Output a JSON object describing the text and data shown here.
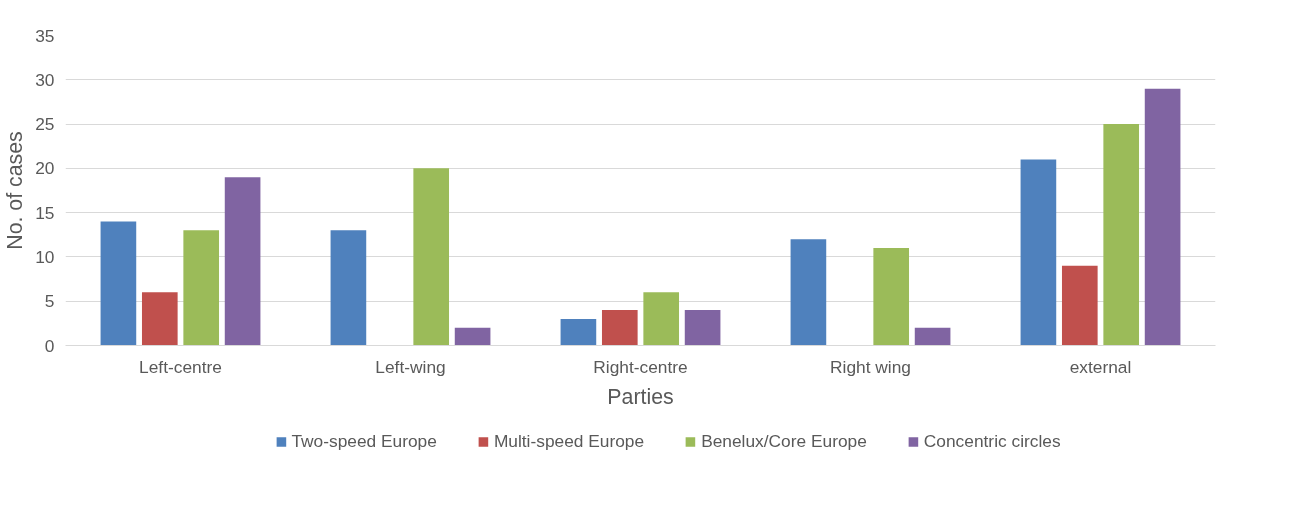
{
  "chart_data": {
    "type": "bar",
    "xlabel": "Parties",
    "ylabel": "No. of cases",
    "categories": [
      "Left-centre",
      "Left-wing",
      "Right-centre",
      "Right wing",
      "external"
    ],
    "series": [
      {
        "name": "Two-speed Europe",
        "color": "#4f81bd",
        "values": [
          14,
          13,
          3,
          12,
          21
        ]
      },
      {
        "name": "Multi-speed Europe",
        "color": "#c0504d",
        "values": [
          6,
          0,
          4,
          0,
          9
        ]
      },
      {
        "name": "Benelux/Core Europe",
        "color": "#9bbb59",
        "values": [
          13,
          20,
          6,
          11,
          25
        ]
      },
      {
        "name": "Concentric circles",
        "color": "#8064a2",
        "values": [
          19,
          2,
          4,
          2,
          29
        ]
      }
    ],
    "ylim": [
      0,
      35
    ],
    "yticks": [
      0,
      5,
      10,
      15,
      20,
      25,
      30,
      35
    ],
    "grid": "y",
    "legend": "bottom"
  }
}
